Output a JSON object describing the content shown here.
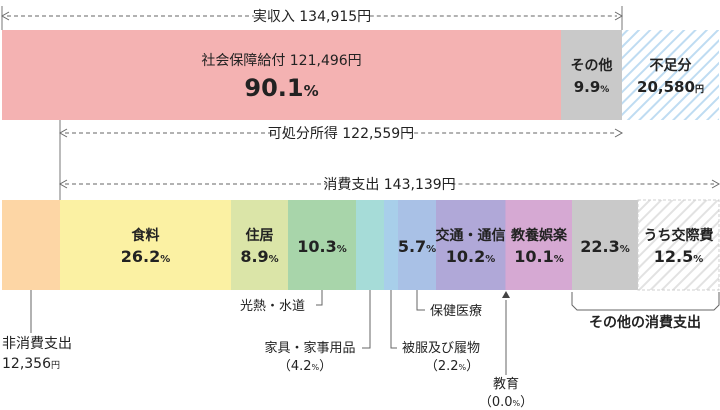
{
  "chart_data": {
    "type": "bar",
    "income": {
      "total_label": "実収入 134,915円",
      "segments": [
        {
          "key": "social",
          "lines": [
            "社会保障給付 121,496円",
            "90.1%"
          ],
          "amount": 121496,
          "percent": 90.1,
          "color": "#f4b2b2"
        },
        {
          "key": "other",
          "lines": [
            "その他",
            "9.9%"
          ],
          "percent": 9.9,
          "color": "#c9c9c9"
        },
        {
          "key": "shortfall",
          "lines": [
            "不足分",
            "20,580円"
          ],
          "amount": 20580,
          "color": "#d9ebf8",
          "hatched": true
        }
      ]
    },
    "disposable_label": "可処分所得 122,559円",
    "consumption": {
      "total_label": "消費支出 143,139円",
      "segments": [
        {
          "key": "food",
          "inside": [
            "食料",
            "26.2%"
          ],
          "percent": 26.2,
          "color": "#fbf1a3"
        },
        {
          "key": "housing",
          "inside": [
            "住居",
            "8.9%"
          ],
          "percent": 8.9,
          "color": "#dbe5a8"
        },
        {
          "key": "utilities",
          "inside": [
            "10.3%"
          ],
          "callout": "光熱・水道",
          "percent": 10.3,
          "color": "#a8d5aa"
        },
        {
          "key": "furniture",
          "callout": "家具・家事用品",
          "callout_value": "（4.2%）",
          "percent": 4.2,
          "color": "#a6dcd8"
        },
        {
          "key": "clothing",
          "callout": "被服及び履物",
          "callout_value": "（2.2%）",
          "percent": 2.2,
          "color": "#a8cfea"
        },
        {
          "key": "medical",
          "inside": [
            "5.7%"
          ],
          "callout": "保健医療",
          "percent": 5.7,
          "color": "#a9c1e6"
        },
        {
          "key": "transport",
          "inside": [
            "交通・通信",
            "10.2%"
          ],
          "percent": 10.2,
          "color": "#b0a8d8"
        },
        {
          "key": "education",
          "callout": "教育",
          "callout_value": "（0.0%）",
          "percent": 0.0,
          "color": "#c5a7d6"
        },
        {
          "key": "recreation",
          "inside": [
            "教養娯楽",
            "10.1%"
          ],
          "percent": 10.1,
          "color": "#d6a9d3"
        },
        {
          "key": "other_consumption",
          "inside": [
            "22.3%"
          ],
          "percent": 22.3,
          "color": "#c9c9c9"
        },
        {
          "key": "social_exp",
          "inside": [
            "うち交際費",
            "12.5%"
          ],
          "percent": 12.5,
          "color": "#ededed",
          "hatched": true
        }
      ],
      "group_label": "その他の消費支出"
    },
    "non_consumption": {
      "label_lines": [
        "非消費支出",
        "12,356円"
      ],
      "amount": 12356,
      "color": "#fdd6a5"
    }
  }
}
